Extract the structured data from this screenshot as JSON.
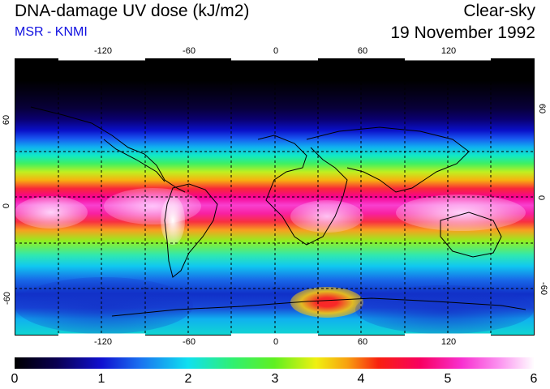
{
  "header": {
    "title": "DNA-damage UV dose (kJ/m2)",
    "source": "MSR - KNMI",
    "sky_condition": "Clear-sky",
    "date": "19 November 1992"
  },
  "map": {
    "lon_ticks": [
      "-120",
      "-60",
      "0",
      "60",
      "120"
    ],
    "lat_ticks": [
      "60",
      "0",
      "-60"
    ]
  },
  "colorbar": {
    "labels": [
      "0",
      "1",
      "2",
      "3",
      "4",
      "5",
      "6"
    ],
    "min": 0,
    "max": 6
  },
  "colors": {
    "subtitle": "#1010e0",
    "grid": "#000000"
  }
}
